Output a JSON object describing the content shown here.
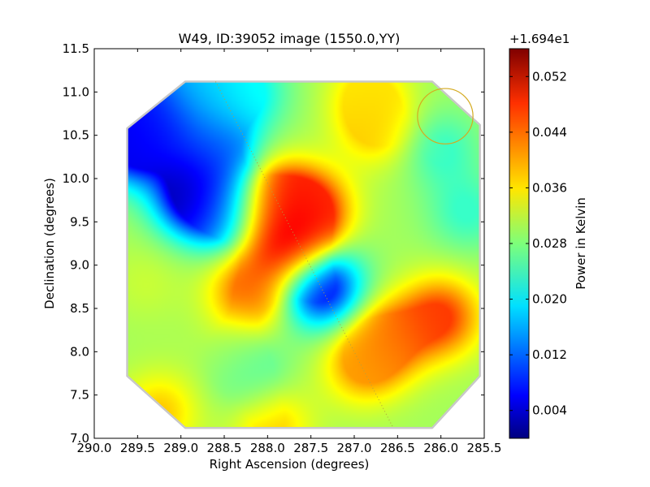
{
  "chart_data": {
    "type": "heatmap",
    "title": "W49, ID:39052 image (1550.0,YY)",
    "xlabel": "Right Ascension (degrees)",
    "ylabel": "Declination (degrees)",
    "xlim": [
      290.0,
      285.5
    ],
    "ylim": [
      7.0,
      11.5
    ],
    "x_ticks": [
      "290.0",
      "289.5",
      "289.0",
      "288.5",
      "288.0",
      "287.5",
      "287.0",
      "286.5",
      "286.0",
      "285.5"
    ],
    "y_ticks": [
      "7.0",
      "7.5",
      "8.0",
      "8.5",
      "9.0",
      "9.5",
      "10.0",
      "10.5",
      "11.0",
      "11.5"
    ],
    "grid": false,
    "colorbar": {
      "label": "Power in Kelvin",
      "offset_text": "+1.694e1",
      "vmin": 0.0,
      "vmax": 0.056,
      "ticks": [
        "0.004",
        "0.012",
        "0.020",
        "0.028",
        "0.036",
        "0.044",
        "0.052"
      ],
      "colormap": "jet"
    },
    "background_value": 0.03,
    "map_octagon": [
      [
        288.95,
        11.12
      ],
      [
        286.1,
        11.12
      ],
      [
        285.55,
        10.62
      ],
      [
        285.55,
        7.72
      ],
      [
        286.1,
        7.12
      ],
      [
        288.95,
        7.12
      ],
      [
        289.62,
        7.72
      ],
      [
        289.62,
        10.58
      ]
    ],
    "features": [
      {
        "ra": 289.6,
        "dec": 10.4,
        "value": 0.006
      },
      {
        "ra": 288.85,
        "dec": 9.82,
        "value": 0.001
      },
      {
        "ra": 289.25,
        "dec": 10.6,
        "value": 0.008
      },
      {
        "ra": 288.6,
        "dec": 10.35,
        "value": 0.012
      },
      {
        "ra": 288.45,
        "dec": 9.6,
        "value": 0.015
      },
      {
        "ra": 288.7,
        "dec": 11.0,
        "value": 0.018
      },
      {
        "ra": 288.2,
        "dec": 11.0,
        "value": 0.022
      },
      {
        "ra": 287.75,
        "dec": 9.25,
        "value": 0.056
      },
      {
        "ra": 287.9,
        "dec": 9.7,
        "value": 0.049
      },
      {
        "ra": 287.5,
        "dec": 9.65,
        "value": 0.046
      },
      {
        "ra": 288.2,
        "dec": 8.7,
        "value": 0.044
      },
      {
        "ra": 287.38,
        "dec": 8.75,
        "value": 0.004
      },
      {
        "ra": 286.0,
        "dec": 8.4,
        "value": 0.046
      },
      {
        "ra": 286.6,
        "dec": 8.15,
        "value": 0.043
      },
      {
        "ra": 286.9,
        "dec": 7.85,
        "value": 0.04
      },
      {
        "ra": 286.75,
        "dec": 10.6,
        "value": 0.038
      },
      {
        "ra": 286.85,
        "dec": 11.0,
        "value": 0.036
      },
      {
        "ra": 286.0,
        "dec": 10.35,
        "value": 0.024
      },
      {
        "ra": 285.7,
        "dec": 9.6,
        "value": 0.024
      },
      {
        "ra": 288.2,
        "dec": 7.75,
        "value": 0.024
      },
      {
        "ra": 289.25,
        "dec": 7.3,
        "value": 0.038
      },
      {
        "ra": 287.95,
        "dec": 7.15,
        "value": 0.038
      },
      {
        "ra": 288.5,
        "dec": 8.0,
        "value": 0.031
      },
      {
        "ra": 289.4,
        "dec": 8.8,
        "value": 0.032
      }
    ],
    "overlays": [
      {
        "type": "dotted_line",
        "from": [
          288.6,
          11.12
        ],
        "to": [
          286.55,
          7.12
        ],
        "color": "#b0a040"
      },
      {
        "type": "circle",
        "center": [
          285.95,
          10.72
        ],
        "radius_deg": 0.32,
        "color": "#d4aa20"
      }
    ]
  }
}
